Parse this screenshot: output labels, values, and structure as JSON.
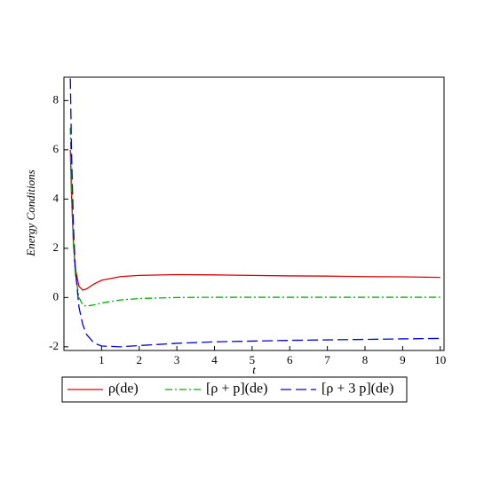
{
  "chart_data": {
    "type": "line",
    "xlabel": "t",
    "ylabel": "Energy Conditions",
    "x": [
      0.17,
      0.2,
      0.25,
      0.3,
      0.4,
      0.5,
      0.6,
      0.8,
      1,
      1.5,
      2,
      3,
      4,
      5,
      6,
      7,
      8,
      9,
      10
    ],
    "series": [
      {
        "name": "ρ(de)",
        "color": "#e00000",
        "dash": "none",
        "values": [
          6.0,
          4.2,
          2.3,
          1.2,
          0.45,
          0.3,
          0.35,
          0.55,
          0.7,
          0.85,
          0.9,
          0.93,
          0.92,
          0.9,
          0.88,
          0.87,
          0.85,
          0.84,
          0.82
        ]
      },
      {
        "name": "[ρ + p](de)",
        "color": "#00b000",
        "dash": "8,3,2,3",
        "values": [
          6.9,
          4.5,
          2.2,
          1.0,
          0.0,
          -0.3,
          -0.35,
          -0.3,
          -0.22,
          -0.1,
          -0.04,
          0,
          0.01,
          0.01,
          0.01,
          0.01,
          0.01,
          0.01,
          0.01
        ]
      },
      {
        "name": "[ρ + 3 p](de)",
        "color": "#0000e0",
        "dash": "12,5",
        "values": [
          8.9,
          6.0,
          3.0,
          1.2,
          -0.4,
          -1.1,
          -1.5,
          -1.85,
          -1.97,
          -2.0,
          -1.95,
          -1.86,
          -1.8,
          -1.77,
          -1.74,
          -1.72,
          -1.7,
          -1.68,
          -1.66
        ]
      }
    ],
    "xlim": [
      0,
      10.1
    ],
    "ylim": [
      -2.15,
      8.95
    ],
    "xticks": [
      1,
      2,
      3,
      4,
      5,
      6,
      7,
      8,
      9,
      10
    ],
    "yticks": [
      -2,
      0,
      2,
      4,
      6,
      8
    ],
    "legend": "bottom"
  }
}
